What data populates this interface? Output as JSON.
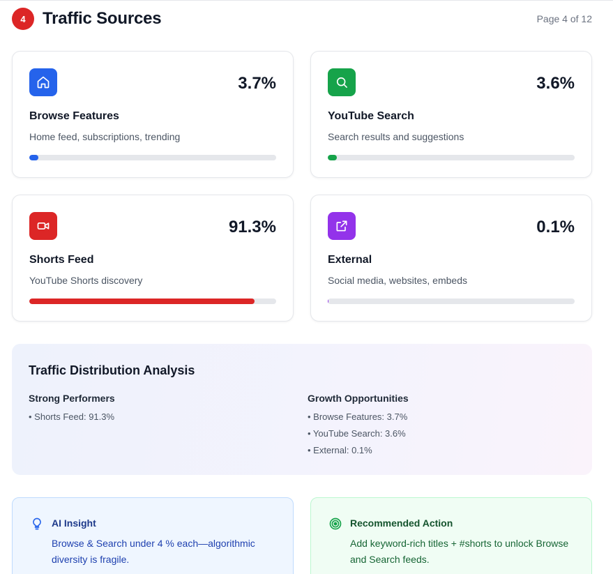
{
  "header": {
    "section_number": "4",
    "title": "Traffic Sources",
    "page_info": "Page 4 of 12"
  },
  "sources": [
    {
      "name": "Browse Features",
      "description": "Home feed, subscriptions, trending",
      "percent_label": "3.7%",
      "share": 3.7,
      "color": "#2563eb",
      "icon": "home-icon"
    },
    {
      "name": "YouTube Search",
      "description": "Search results and suggestions",
      "percent_label": "3.6%",
      "share": 3.6,
      "color": "#16a34a",
      "icon": "search-icon"
    },
    {
      "name": "Shorts Feed",
      "description": "YouTube Shorts discovery",
      "percent_label": "91.3%",
      "share": 91.3,
      "color": "#dc2626",
      "icon": "video-icon"
    },
    {
      "name": "External",
      "description": "Social media, websites, embeds",
      "percent_label": "0.1%",
      "share": 0.1,
      "color": "#9333ea",
      "icon": "external-link-icon"
    }
  ],
  "analysis": {
    "title": "Traffic Distribution Analysis",
    "strong": {
      "heading": "Strong Performers",
      "items": [
        "• Shorts Feed: 91.3%"
      ]
    },
    "growth": {
      "heading": "Growth Opportunities",
      "items": [
        "• Browse Features: 3.7%",
        "• YouTube Search: 3.6%",
        "• External: 0.1%"
      ]
    }
  },
  "insight": {
    "icon": "lightbulb-icon",
    "title": "AI Insight",
    "body": "Browse & Search under 4 % each—algorithmic diversity is fragile."
  },
  "action": {
    "icon": "target-icon",
    "title": "Recommended Action",
    "body": "Add keyword-rich titles + #shorts to unlock Browse and Search feeds."
  }
}
